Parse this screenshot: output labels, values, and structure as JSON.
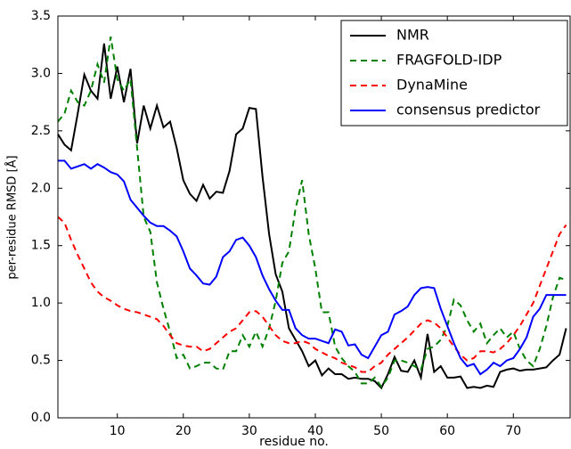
{
  "chart_data": {
    "type": "line",
    "xlabel": "residue no.",
    "ylabel": "per-residue RMSD [Å]",
    "x": [
      1,
      2,
      3,
      4,
      5,
      6,
      7,
      8,
      9,
      10,
      11,
      12,
      13,
      14,
      15,
      16,
      17,
      18,
      19,
      20,
      21,
      22,
      23,
      24,
      25,
      26,
      27,
      28,
      29,
      30,
      31,
      32,
      33,
      34,
      35,
      36,
      37,
      38,
      39,
      40,
      41,
      42,
      43,
      44,
      45,
      46,
      47,
      48,
      49,
      50,
      51,
      52,
      53,
      54,
      55,
      56,
      57,
      58,
      59,
      60,
      61,
      62,
      63,
      64,
      65,
      66,
      67,
      68,
      69,
      70,
      71,
      72,
      73,
      74,
      75,
      76,
      77,
      78
    ],
    "xlim": [
      1,
      78.6
    ],
    "ylim": [
      0,
      3.5
    ],
    "xticks": [
      10,
      20,
      30,
      40,
      50,
      60,
      70
    ],
    "yticks": [
      {
        "value": 0,
        "label": "0.0"
      },
      0.5,
      {
        "value": 1,
        "label": "1.0"
      },
      1.5,
      {
        "value": 2,
        "label": "2.0"
      },
      2.5,
      {
        "value": 3,
        "label": "3.0"
      },
      3.5
    ],
    "legend": "upper right",
    "series": [
      {
        "name": "NMR",
        "color": "#000000",
        "dash": "solid",
        "values": [
          2.47,
          2.38,
          2.33,
          2.65,
          2.99,
          2.85,
          2.78,
          3.26,
          2.78,
          3.06,
          2.75,
          3.04,
          2.39,
          2.72,
          2.52,
          2.72,
          2.53,
          2.58,
          2.35,
          2.07,
          1.95,
          1.89,
          2.03,
          1.91,
          1.97,
          1.96,
          2.15,
          2.47,
          2.52,
          2.7,
          2.69,
          2.1,
          1.6,
          1.25,
          1.1,
          0.78,
          0.68,
          0.58,
          0.45,
          0.5,
          0.37,
          0.43,
          0.38,
          0.38,
          0.34,
          0.35,
          0.34,
          0.34,
          0.32,
          0.26,
          0.38,
          0.53,
          0.41,
          0.4,
          0.5,
          0.35,
          0.73,
          0.4,
          0.45,
          0.35,
          0.35,
          0.36,
          0.26,
          0.27,
          0.26,
          0.28,
          0.27,
          0.4,
          0.42,
          0.43,
          0.41,
          0.42,
          0.42,
          0.43,
          0.44,
          0.5,
          0.55,
          0.78
        ]
      },
      {
        "name": "FRAGFOLD-IDP",
        "color": "#008000",
        "dash": "dashed",
        "values": [
          2.58,
          2.65,
          2.85,
          2.75,
          2.72,
          2.85,
          3.08,
          2.92,
          3.32,
          2.95,
          2.85,
          2.95,
          2.35,
          1.75,
          1.62,
          1.18,
          0.95,
          0.75,
          0.52,
          0.55,
          0.43,
          0.45,
          0.48,
          0.48,
          0.43,
          0.42,
          0.58,
          0.58,
          0.72,
          0.62,
          0.75,
          0.62,
          0.78,
          1.02,
          1.35,
          1.45,
          1.82,
          2.07,
          1.6,
          1.3,
          0.92,
          0.92,
          0.62,
          0.52,
          0.45,
          0.4,
          0.3,
          0.3,
          0.35,
          0.27,
          0.35,
          0.5,
          0.5,
          0.48,
          0.45,
          0.42,
          0.6,
          0.62,
          0.68,
          0.8,
          1.03,
          0.98,
          0.85,
          0.75,
          0.82,
          0.65,
          0.72,
          0.78,
          0.7,
          0.75,
          0.6,
          0.5,
          0.45,
          0.6,
          0.8,
          1.05,
          1.22,
          1.2
        ]
      },
      {
        "name": "DynaMine",
        "color": "#ff0000",
        "dash": "dashed",
        "values": [
          1.75,
          1.7,
          1.55,
          1.42,
          1.3,
          1.18,
          1.1,
          1.05,
          1.02,
          0.98,
          0.95,
          0.93,
          0.92,
          0.9,
          0.88,
          0.86,
          0.8,
          0.72,
          0.65,
          0.63,
          0.62,
          0.62,
          0.58,
          0.6,
          0.65,
          0.7,
          0.75,
          0.78,
          0.85,
          0.92,
          0.93,
          0.88,
          0.8,
          0.72,
          0.67,
          0.65,
          0.65,
          0.67,
          0.65,
          0.6,
          0.57,
          0.54,
          0.52,
          0.48,
          0.46,
          0.44,
          0.4,
          0.4,
          0.45,
          0.48,
          0.55,
          0.6,
          0.65,
          0.7,
          0.76,
          0.82,
          0.85,
          0.83,
          0.78,
          0.7,
          0.62,
          0.55,
          0.5,
          0.52,
          0.58,
          0.58,
          0.57,
          0.6,
          0.65,
          0.72,
          0.8,
          0.9,
          1.0,
          1.15,
          1.3,
          1.45,
          1.6,
          1.68
        ]
      },
      {
        "name": "consensus predictor",
        "color": "#0000ff",
        "dash": "solid",
        "values": [
          2.24,
          2.24,
          2.17,
          2.19,
          2.21,
          2.17,
          2.21,
          2.18,
          2.14,
          2.12,
          2.06,
          1.9,
          1.83,
          1.76,
          1.7,
          1.67,
          1.67,
          1.63,
          1.58,
          1.45,
          1.3,
          1.24,
          1.17,
          1.16,
          1.23,
          1.4,
          1.45,
          1.55,
          1.57,
          1.5,
          1.4,
          1.24,
          1.12,
          1.02,
          0.94,
          0.94,
          0.78,
          0.72,
          0.69,
          0.69,
          0.67,
          0.65,
          0.77,
          0.75,
          0.63,
          0.64,
          0.55,
          0.52,
          0.62,
          0.72,
          0.75,
          0.9,
          0.93,
          0.97,
          1.07,
          1.13,
          1.14,
          1.13,
          0.95,
          0.8,
          0.65,
          0.52,
          0.45,
          0.47,
          0.38,
          0.42,
          0.48,
          0.45,
          0.5,
          0.52,
          0.6,
          0.7,
          0.88,
          0.95,
          1.07,
          1.07,
          1.07,
          1.07
        ]
      }
    ]
  }
}
